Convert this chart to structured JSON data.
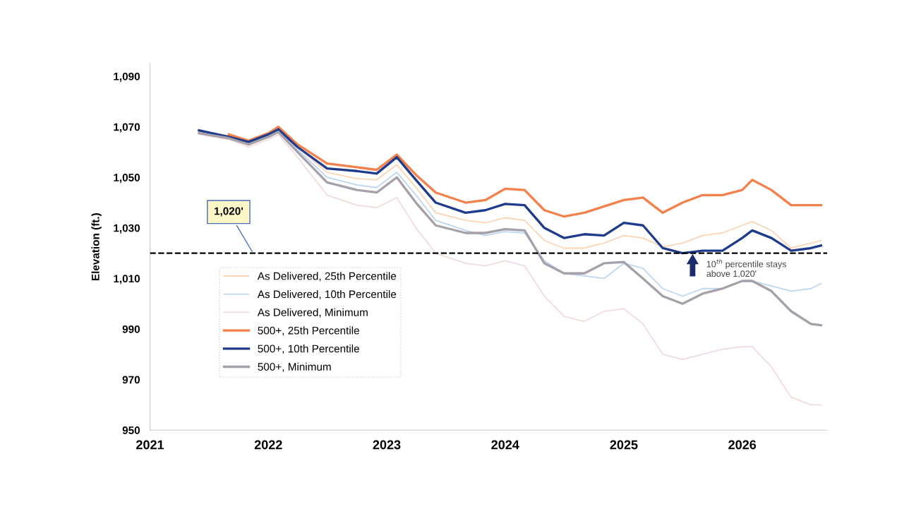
{
  "chart_data": {
    "type": "line",
    "ylabel": "Elevation (ft.)",
    "x": [
      "2021-06",
      "2021-09",
      "2021-11",
      "2022-01",
      "2022-02",
      "2022-04",
      "2022-07",
      "2022-10",
      "2022-12",
      "2023-02",
      "2023-04",
      "2023-06",
      "2023-09",
      "2023-11",
      "2024-01",
      "2024-03",
      "2024-05",
      "2024-07",
      "2024-09",
      "2024-11",
      "2025-01",
      "2025-03",
      "2025-05",
      "2025-07",
      "2025-09",
      "2025-11",
      "2026-01",
      "2026-02",
      "2026-04",
      "2026-06",
      "2026-08",
      "2026-09"
    ],
    "series": [
      {
        "name": "As Delivered, 25th Percentile",
        "color": "#fcd5b4",
        "values": [
          1068,
          1066.5,
          1064,
          1067,
          1069.5,
          1062,
          1052,
          1049.5,
          1049,
          1055,
          1046,
          1036,
          1033,
          1032,
          1034,
          1033,
          1025,
          1022,
          1022,
          1024,
          1027,
          1026,
          1022.5,
          1024,
          1027,
          1028,
          1031,
          1032.5,
          1029,
          1022,
          1024,
          1025
        ]
      },
      {
        "name": "As Delivered, 10th Percentile",
        "color": "#bdd7ee",
        "values": [
          1067.5,
          1066,
          1063,
          1066.5,
          1068.5,
          1061,
          1050,
          1047,
          1046,
          1052,
          1043,
          1033,
          1029,
          1027,
          1028.5,
          1028,
          1017,
          1012,
          1011,
          1010,
          1016,
          1014,
          1006,
          1003,
          1006,
          1006,
          1009,
          1009,
          1007,
          1005,
          1006,
          1008
        ]
      },
      {
        "name": "As Delivered, Minimum",
        "color": "#f2dcdb",
        "values": [
          1067,
          1065,
          1062,
          1065,
          1067,
          1058,
          1043,
          1039,
          1038,
          1042,
          1030,
          1020,
          1016,
          1015,
          1017,
          1015,
          1003,
          995,
          993,
          997,
          998,
          992,
          980,
          978,
          980,
          982,
          983,
          983,
          975,
          963,
          960,
          960
        ]
      },
      {
        "name": "500+, 25th Percentile",
        "color": "#f4804c",
        "values": [
          null,
          1067,
          1064.5,
          1067.5,
          1070,
          1063,
          1055.5,
          1054,
          1053,
          1059,
          1051,
          1044,
          1040,
          1041,
          1045.5,
          1045,
          1037,
          1034.5,
          1036,
          1038.5,
          1041,
          1042,
          1036,
          1040,
          1043,
          1043,
          1045,
          1049,
          1045,
          1039,
          1039,
          1039
        ]
      },
      {
        "name": "500+, 10th Percentile",
        "color": "#1f3b8c",
        "values": [
          1068.6,
          1066,
          1064,
          1067,
          1069,
          1062,
          1053.5,
          1052.5,
          1051.5,
          1058,
          1049,
          1040,
          1036,
          1037,
          1039.5,
          1039,
          1030,
          1026,
          1027.5,
          1027,
          1032,
          1031,
          1022,
          1020,
          1021,
          1021,
          1026,
          1029,
          1026,
          1021,
          1022,
          1023
        ]
      },
      {
        "name": "500+, Minimum",
        "color": "#a6a0aa",
        "values": [
          1067.5,
          1065.5,
          1063,
          1066,
          1068,
          1060,
          1048,
          1045,
          1044,
          1050,
          1040,
          1031,
          1028,
          1028,
          1029.5,
          1029,
          1016,
          1012,
          1012,
          1016,
          1016.5,
          1010,
          1003,
          1000,
          1004,
          1006,
          1009,
          1009,
          1005,
          997,
          992,
          991.5
        ]
      }
    ],
    "xlim": [
      "2021-01-01",
      "2026-09-20"
    ],
    "xticks": [
      "2021",
      "2022",
      "2023",
      "2024",
      "2025",
      "2026"
    ],
    "ylim": [
      950,
      1095
    ],
    "yticks": [
      {
        "value": 950,
        "label": "950"
      },
      {
        "value": 970,
        "label": "970"
      },
      {
        "value": 990,
        "label": "990"
      },
      {
        "value": 1010,
        "label": "1,010"
      },
      {
        "value": 1030,
        "label": "1,030"
      },
      {
        "value": 1050,
        "label": "1,050"
      },
      {
        "value": 1070,
        "label": "1,070"
      },
      {
        "value": 1090,
        "label": "1,090"
      }
    ],
    "ref_lines": [
      {
        "axis": "y",
        "value": 1020,
        "label": "1,020'",
        "color": "#000000",
        "line_style": "dashed"
      }
    ],
    "annotations": [
      {
        "text": "10$^{th}$ percentile stays\nabove 1,020'",
        "x": "2025-08",
        "y": 1020
      }
    ],
    "grid": false,
    "legend": "bottom left",
    "marker": "none",
    "line_style": "solid"
  }
}
